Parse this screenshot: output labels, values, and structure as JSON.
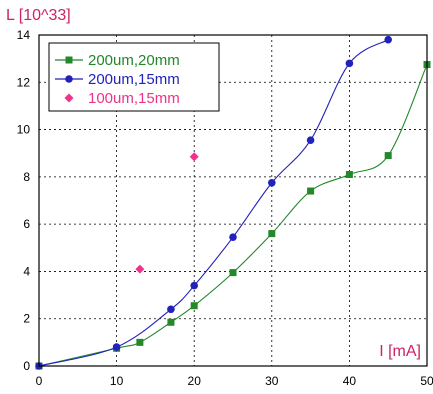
{
  "chart_data": {
    "type": "line",
    "ylabel": "L [10^33]",
    "xlabel": "I [mA]",
    "xlim": [
      0,
      50
    ],
    "ylim": [
      0,
      14
    ],
    "xticks": [
      0,
      10,
      20,
      30,
      40,
      50
    ],
    "yticks": [
      0,
      2,
      4,
      6,
      8,
      10,
      12,
      14
    ],
    "grid": true,
    "legend_position": "top-left",
    "label_color": "#cc2266",
    "series": [
      {
        "name": "200um,20mm",
        "color": "#22882a",
        "marker": "square",
        "line": true,
        "x": [
          0,
          10,
          13,
          17,
          20,
          25,
          30,
          35,
          40,
          45,
          50
        ],
        "y": [
          0,
          0.75,
          1.0,
          1.85,
          2.55,
          3.95,
          5.6,
          7.4,
          8.1,
          8.9,
          12.75
        ]
      },
      {
        "name": "200um,15mm",
        "color": "#2222bb",
        "marker": "circle",
        "line": true,
        "x": [
          0,
          10,
          17,
          20,
          25,
          30,
          35,
          40,
          45
        ],
        "y": [
          0,
          0.8,
          2.4,
          3.4,
          5.45,
          7.75,
          9.55,
          12.8,
          13.8
        ]
      },
      {
        "name": "100um,15mm",
        "color": "#ee3388",
        "marker": "diamond",
        "line": false,
        "x": [
          13,
          20
        ],
        "y": [
          4.1,
          8.85
        ]
      }
    ]
  }
}
